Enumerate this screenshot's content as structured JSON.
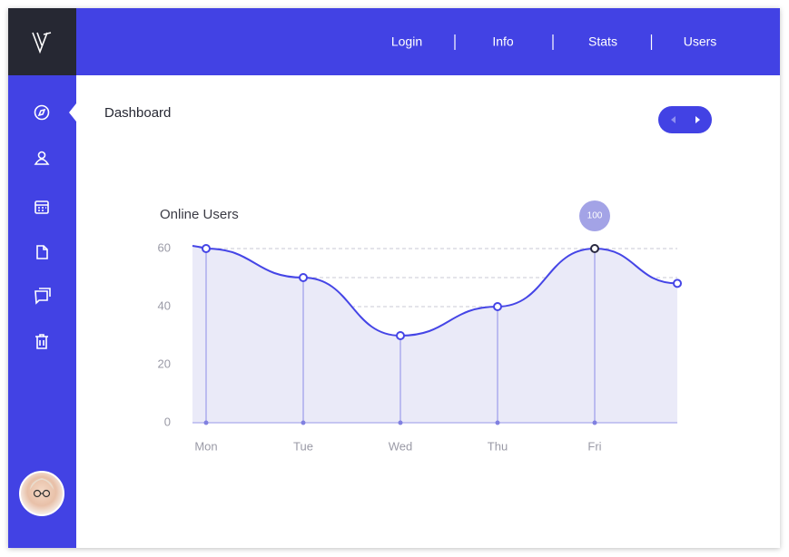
{
  "nav": [
    "Login",
    "Info",
    "Stats",
    "Users"
  ],
  "page_title": "Dashboard",
  "chart_data": {
    "type": "line",
    "title": "Online Users",
    "categories": [
      "Mon",
      "Tue",
      "Wed",
      "Thu",
      "Fri",
      null
    ],
    "values": [
      60,
      50,
      30,
      40,
      60,
      48
    ],
    "color": "#4545e6",
    "annotation": "100",
    "ylim": [
      0,
      60
    ],
    "yticks": [
      0,
      20,
      40,
      60
    ],
    "grid": true
  }
}
